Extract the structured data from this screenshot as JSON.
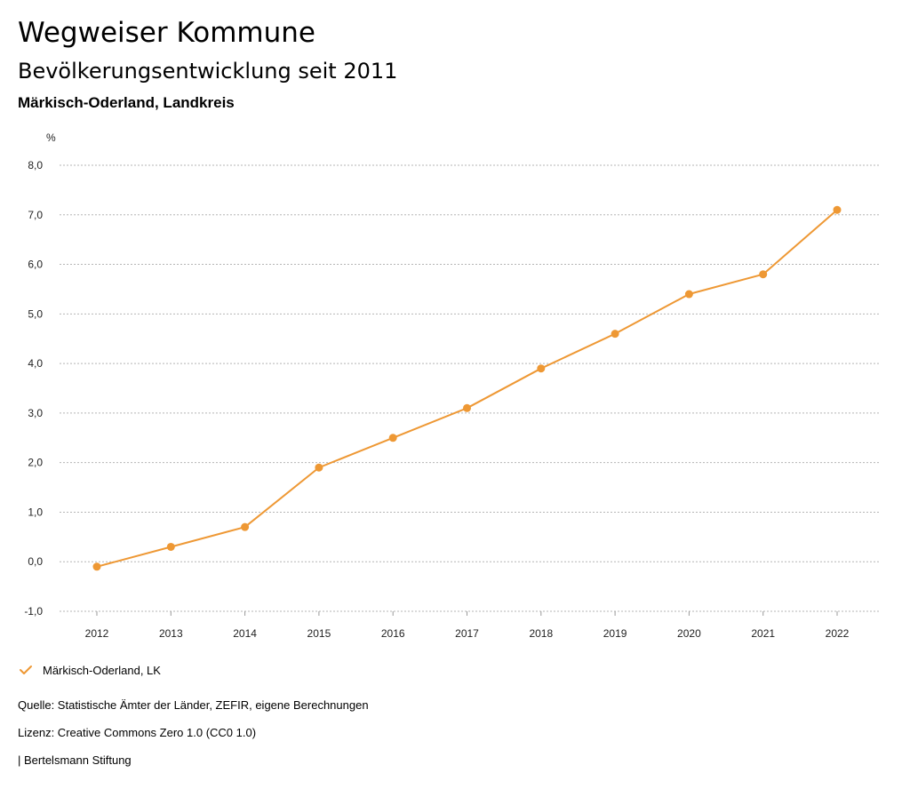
{
  "header": {
    "title": "Wegweiser Kommune",
    "subtitle": "Bevölkerungsentwicklung seit 2011",
    "region": "Märkisch-Oderland, Landkreis"
  },
  "chart_data": {
    "type": "line",
    "title": "Bevölkerungsentwicklung seit 2011",
    "xlabel": "",
    "ylabel": "%",
    "categories": [
      "2012",
      "2013",
      "2014",
      "2015",
      "2016",
      "2017",
      "2018",
      "2019",
      "2020",
      "2021",
      "2022"
    ],
    "series": [
      {
        "name": "Märkisch-Oderland, LK",
        "color": "#EE9834",
        "values": [
          -0.1,
          0.3,
          0.7,
          1.9,
          2.5,
          3.1,
          3.9,
          4.6,
          5.4,
          5.8,
          7.1
        ]
      }
    ],
    "ylim": [
      -1.0,
      8.0
    ],
    "yticks": [
      "-1,0",
      "0,0",
      "1,0",
      "2,0",
      "3,0",
      "4,0",
      "5,0",
      "6,0",
      "7,0",
      "8,0"
    ],
    "grid": true
  },
  "legend": {
    "label": "Märkisch-Oderland, LK"
  },
  "footer": {
    "source": "Quelle: Statistische Ämter der Länder, ZEFIR, eigene Berechnungen",
    "license": "Lizenz: Creative Commons Zero 1.0 (CC0 1.0)",
    "publisher": "| Bertelsmann Stiftung"
  }
}
